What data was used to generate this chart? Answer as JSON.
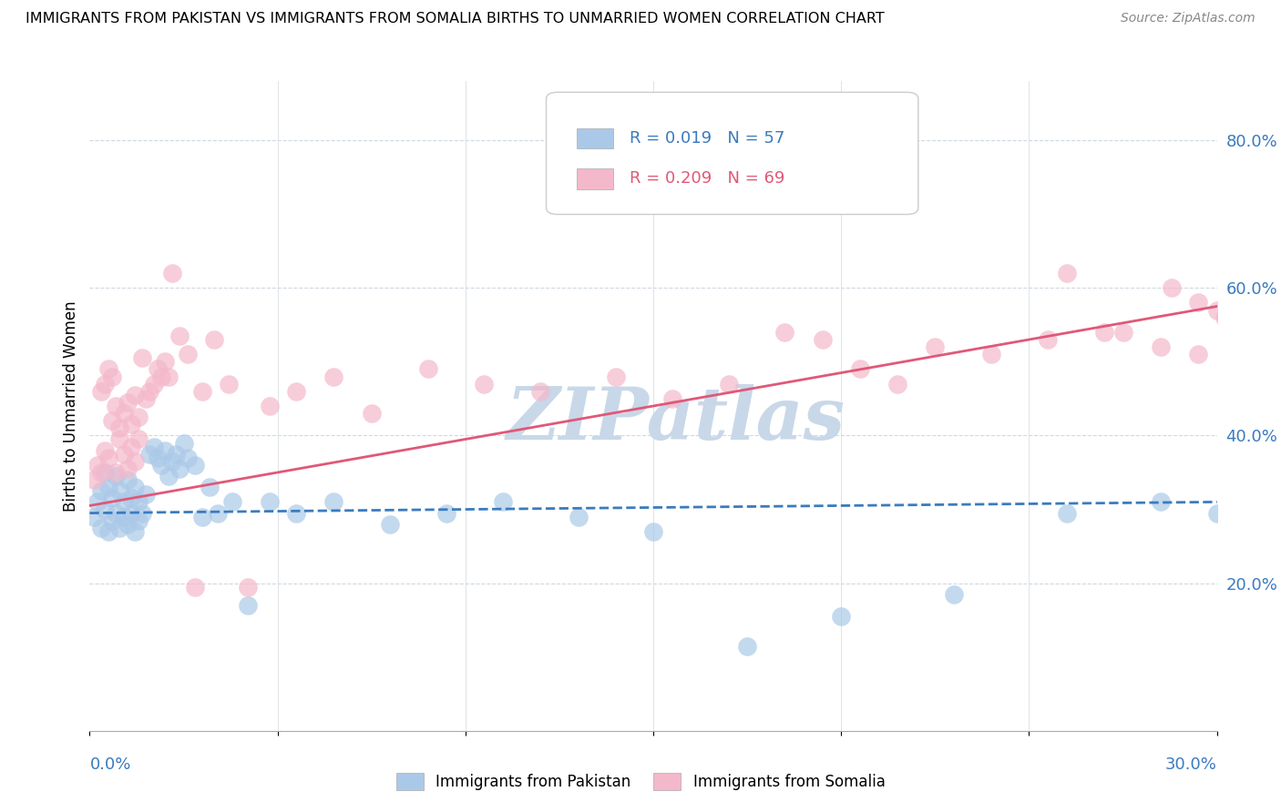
{
  "title": "IMMIGRANTS FROM PAKISTAN VS IMMIGRANTS FROM SOMALIA BIRTHS TO UNMARRIED WOMEN CORRELATION CHART",
  "source": "Source: ZipAtlas.com",
  "ylabel": "Births to Unmarried Women",
  "pakistan_R": "0.019",
  "pakistan_N": "57",
  "somalia_R": "0.209",
  "somalia_N": "69",
  "pakistan_color": "#aac9e8",
  "somalia_color": "#f4b8cb",
  "pakistan_line_color": "#3a7bbf",
  "somalia_line_color": "#e05878",
  "background_color": "#ffffff",
  "watermark": "ZIPatlas",
  "watermark_color": "#c8d8e8",
  "xlim": [
    0.0,
    0.3
  ],
  "ylim": [
    0.0,
    0.88
  ],
  "right_yticks": [
    0.2,
    0.4,
    0.6,
    0.8
  ],
  "right_yticklabels": [
    "20.0%",
    "40.0%",
    "60.0%",
    "80.0%"
  ],
  "grid_color": "#d0d8e0",
  "pak_x": [
    0.001,
    0.002,
    0.003,
    0.003,
    0.004,
    0.004,
    0.005,
    0.005,
    0.006,
    0.006,
    0.007,
    0.007,
    0.008,
    0.008,
    0.009,
    0.009,
    0.01,
    0.01,
    0.011,
    0.011,
    0.012,
    0.012,
    0.013,
    0.013,
    0.014,
    0.015,
    0.016,
    0.017,
    0.018,
    0.019,
    0.02,
    0.021,
    0.022,
    0.023,
    0.024,
    0.025,
    0.026,
    0.028,
    0.03,
    0.032,
    0.034,
    0.038,
    0.042,
    0.048,
    0.055,
    0.065,
    0.08,
    0.095,
    0.11,
    0.13,
    0.15,
    0.175,
    0.2,
    0.23,
    0.26,
    0.285,
    0.3
  ],
  "pak_y": [
    0.29,
    0.31,
    0.325,
    0.275,
    0.3,
    0.35,
    0.27,
    0.33,
    0.285,
    0.315,
    0.295,
    0.345,
    0.275,
    0.325,
    0.29,
    0.31,
    0.28,
    0.34,
    0.295,
    0.315,
    0.27,
    0.33,
    0.285,
    0.31,
    0.295,
    0.32,
    0.375,
    0.385,
    0.37,
    0.36,
    0.38,
    0.345,
    0.365,
    0.375,
    0.355,
    0.39,
    0.37,
    0.36,
    0.29,
    0.33,
    0.295,
    0.31,
    0.17,
    0.31,
    0.295,
    0.31,
    0.28,
    0.295,
    0.31,
    0.29,
    0.27,
    0.115,
    0.155,
    0.185,
    0.295,
    0.31,
    0.295
  ],
  "som_x": [
    0.001,
    0.002,
    0.003,
    0.003,
    0.004,
    0.004,
    0.005,
    0.005,
    0.006,
    0.006,
    0.007,
    0.007,
    0.008,
    0.008,
    0.009,
    0.009,
    0.01,
    0.01,
    0.011,
    0.011,
    0.012,
    0.012,
    0.013,
    0.013,
    0.014,
    0.015,
    0.016,
    0.017,
    0.018,
    0.019,
    0.02,
    0.021,
    0.022,
    0.024,
    0.026,
    0.028,
    0.03,
    0.033,
    0.037,
    0.042,
    0.048,
    0.055,
    0.065,
    0.075,
    0.09,
    0.105,
    0.12,
    0.14,
    0.155,
    0.17,
    0.185,
    0.195,
    0.205,
    0.215,
    0.225,
    0.24,
    0.255,
    0.27,
    0.285,
    0.295,
    0.3,
    0.305,
    0.31,
    0.302,
    0.308,
    0.295,
    0.288,
    0.275,
    0.26
  ],
  "som_y": [
    0.34,
    0.36,
    0.35,
    0.46,
    0.38,
    0.47,
    0.49,
    0.37,
    0.42,
    0.48,
    0.35,
    0.44,
    0.395,
    0.41,
    0.375,
    0.43,
    0.355,
    0.445,
    0.385,
    0.415,
    0.365,
    0.455,
    0.395,
    0.425,
    0.505,
    0.45,
    0.46,
    0.47,
    0.49,
    0.48,
    0.5,
    0.48,
    0.62,
    0.535,
    0.51,
    0.195,
    0.46,
    0.53,
    0.47,
    0.195,
    0.44,
    0.46,
    0.48,
    0.43,
    0.49,
    0.47,
    0.46,
    0.48,
    0.45,
    0.47,
    0.54,
    0.53,
    0.49,
    0.47,
    0.52,
    0.51,
    0.53,
    0.54,
    0.52,
    0.51,
    0.57,
    0.58,
    0.6,
    0.56,
    0.55,
    0.58,
    0.6,
    0.54,
    0.62
  ],
  "pak_line_x": [
    0.0,
    0.3
  ],
  "pak_line_y": [
    0.295,
    0.31
  ],
  "som_line_x": [
    0.0,
    0.3
  ],
  "som_line_y": [
    0.305,
    0.575
  ]
}
